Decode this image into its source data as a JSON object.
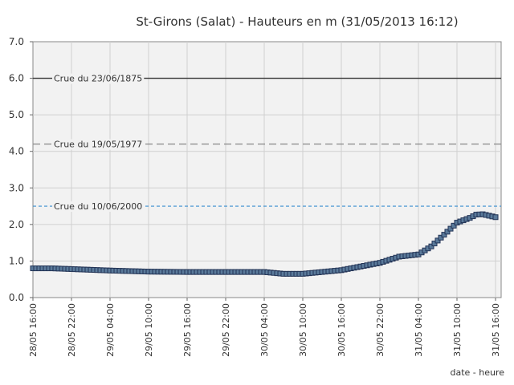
{
  "chart_data": {
    "type": "line",
    "title": "St-Girons (Salat) - Hauteurs en m (31/05/2013 16:12)",
    "xlabel": "date - heure",
    "ylabel": "",
    "ylim": [
      0,
      7
    ],
    "y_ticks": [
      "0.0",
      "1.0",
      "2.0",
      "3.0",
      "4.0",
      "5.0",
      "6.0",
      "7.0"
    ],
    "x_tick_labels": [
      "28/05 16:00",
      "28/05 22:00",
      "29/05 04:00",
      "29/05 10:00",
      "29/05 16:00",
      "29/05 22:00",
      "30/05 04:00",
      "30/05 10:00",
      "30/05 16:00",
      "30/05 22:00",
      "31/05 04:00",
      "31/05 10:00",
      "31/05 16:00"
    ],
    "grid": true,
    "reference_lines": [
      {
        "label": "Crue du 23/06/1875",
        "value": 6.0,
        "style": "solid",
        "color": "#333333"
      },
      {
        "label": "Crue du 19/05/1977",
        "value": 4.2,
        "style": "dashed",
        "color": "#888888"
      },
      {
        "label": "Crue du 10/06/2000",
        "value": 2.5,
        "style": "dashed",
        "color": "#3a8fd0"
      }
    ],
    "series": [
      {
        "color": "#223355",
        "x": [
          "28/05 16:00",
          "28/05 19:00",
          "28/05 22:00",
          "29/05 04:00",
          "29/05 10:00",
          "29/05 16:00",
          "29/05 22:00",
          "30/05 04:00",
          "30/05 07:00",
          "30/05 10:00",
          "30/05 13:00",
          "30/05 16:00",
          "30/05 19:00",
          "30/05 22:00",
          "31/05 01:00",
          "31/05 04:00",
          "31/05 06:00",
          "31/05 08:00",
          "31/05 10:00",
          "31/05 12:00",
          "31/05 13:00",
          "31/05 14:00",
          "31/05 15:00",
          "31/05 16:00"
        ],
        "values": [
          0.8,
          0.8,
          0.78,
          0.74,
          0.71,
          0.7,
          0.7,
          0.7,
          0.65,
          0.65,
          0.7,
          0.75,
          0.85,
          0.95,
          1.12,
          1.18,
          1.4,
          1.72,
          2.05,
          2.18,
          2.27,
          2.28,
          2.24,
          2.2
        ]
      }
    ]
  }
}
